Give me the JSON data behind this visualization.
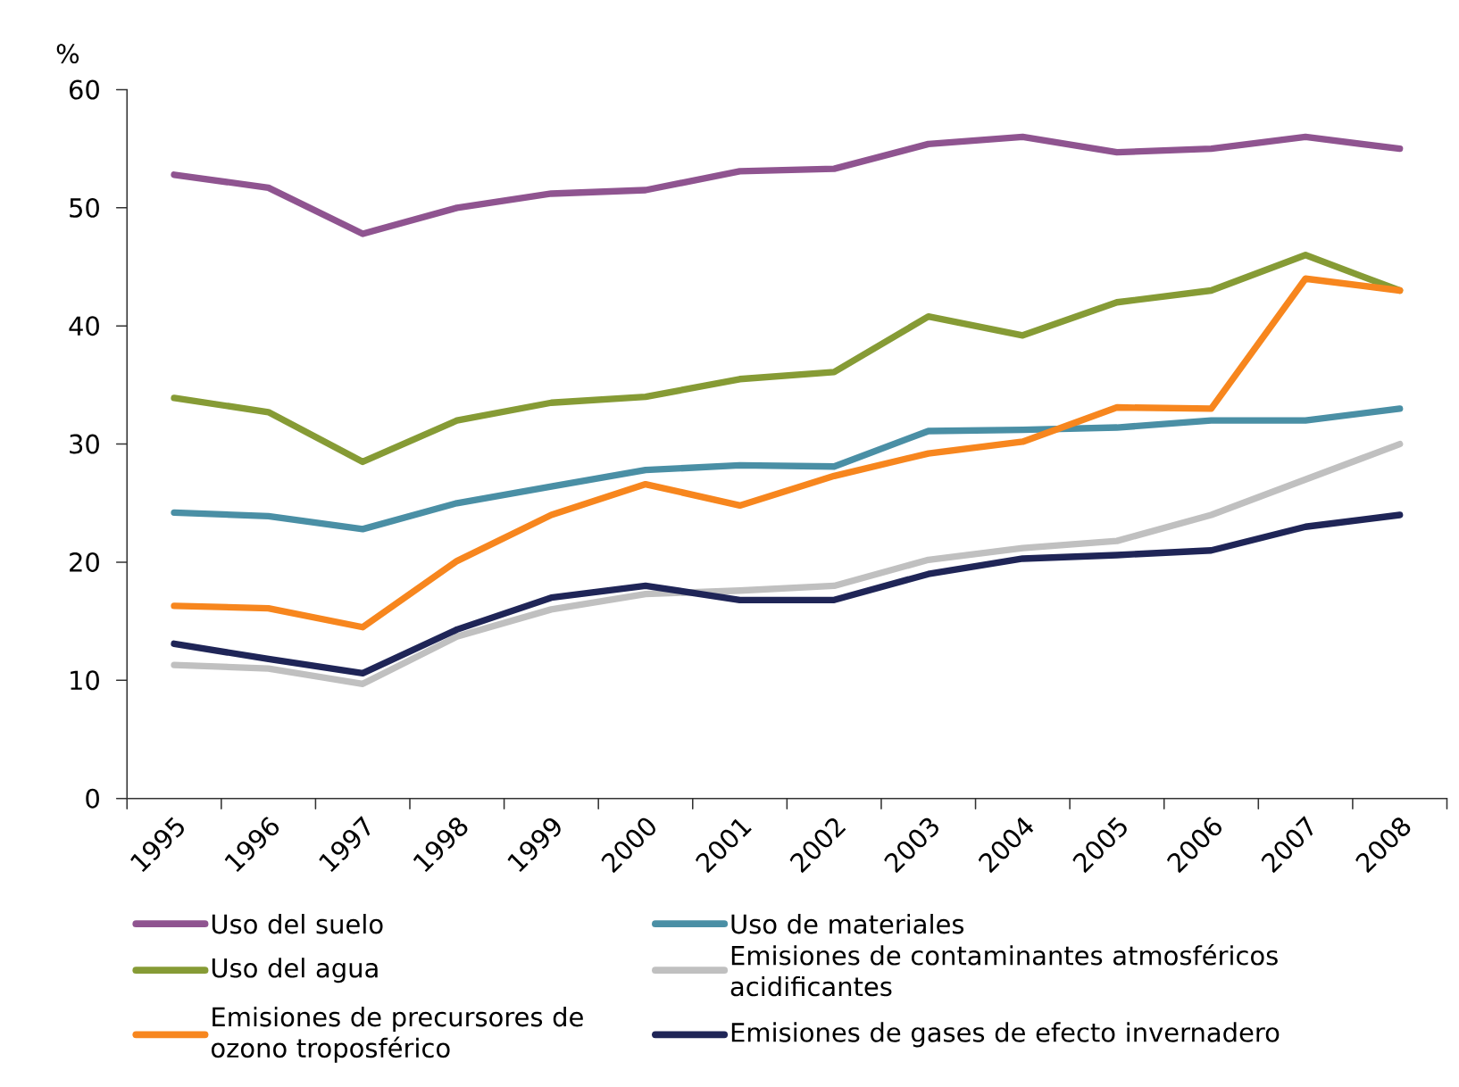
{
  "chart_data": {
    "type": "line",
    "ylabel": "%",
    "categories": [
      "1995",
      "1996",
      "1997",
      "1998",
      "1999",
      "2000",
      "2001",
      "2002",
      "2003",
      "2004",
      "2005",
      "2006",
      "2007",
      "2008"
    ],
    "ylim": [
      0,
      60
    ],
    "yticks": [
      0,
      10,
      20,
      30,
      40,
      50,
      60
    ],
    "grid": false,
    "legend": "bottom",
    "marker": "none",
    "line_style": "solid",
    "series": [
      {
        "name": "Uso del suelo",
        "color": "#8f5490",
        "values": [
          52.8,
          51.7,
          47.8,
          50.0,
          51.2,
          51.5,
          53.1,
          53.3,
          55.4,
          56.0,
          54.7,
          55.0,
          56.0,
          55.0
        ]
      },
      {
        "name": "Uso de materiales",
        "color": "#4a8fa5",
        "values": [
          24.2,
          23.9,
          22.8,
          25.0,
          26.4,
          27.8,
          28.2,
          28.1,
          31.1,
          31.2,
          31.4,
          32.0,
          32.0,
          33.0
        ]
      },
      {
        "name": "Uso del agua",
        "color": "#869b35",
        "values": [
          33.9,
          32.7,
          28.5,
          32.0,
          33.5,
          34.0,
          35.5,
          36.1,
          40.8,
          39.2,
          42.0,
          43.0,
          46.0,
          43.0
        ]
      },
      {
        "name": "Emisiones de contaminantes atmosféricos acidificantes",
        "color": "#c0c0c0",
        "values": [
          11.3,
          11.0,
          9.7,
          13.7,
          16.0,
          17.3,
          17.6,
          18.0,
          20.2,
          21.2,
          21.8,
          24.0,
          27.0,
          30.0
        ]
      },
      {
        "name": "Emisiones de precursores de ozono troposférico",
        "color": "#f7861e",
        "values": [
          16.3,
          16.1,
          14.5,
          20.1,
          24.0,
          26.6,
          24.8,
          27.3,
          29.2,
          30.2,
          33.1,
          33.0,
          44.0,
          43.0
        ]
      },
      {
        "name": "Emisiones de gases de efecto invernadero",
        "color": "#1f2557",
        "values": [
          13.1,
          11.8,
          10.6,
          14.3,
          17.0,
          18.0,
          16.8,
          16.8,
          19.0,
          20.3,
          20.6,
          21.0,
          23.0,
          24.0
        ]
      }
    ]
  }
}
